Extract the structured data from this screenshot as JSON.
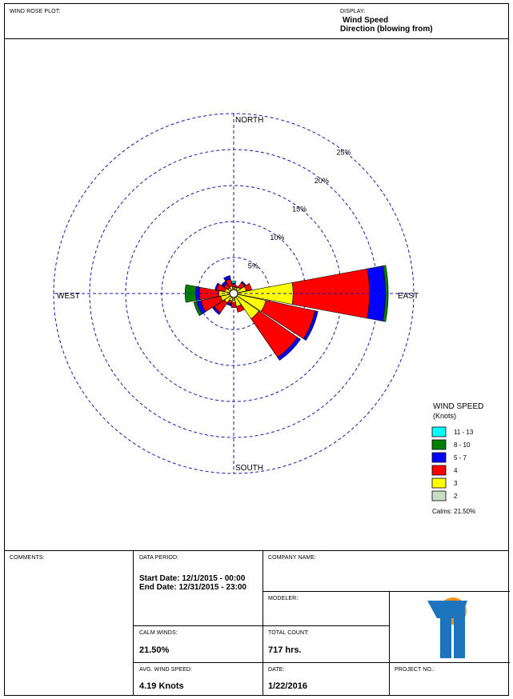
{
  "header": {
    "plot_label": "WIND ROSE PLOT:",
    "display_label": "DISPLAY:",
    "display_line1": "Wind Speed",
    "display_line2": "Direction (blowing from)"
  },
  "chart_data": {
    "type": "wind-rose",
    "directions": [
      "N",
      "NNE",
      "NE",
      "ENE",
      "E",
      "ESE",
      "SE",
      "SSE",
      "S",
      "SSW",
      "SW",
      "WSW",
      "W",
      "WNW",
      "NW",
      "NNW"
    ],
    "direction_labels": {
      "north": "NORTH",
      "east": "EAST",
      "south": "SOUTH",
      "west": "WEST"
    },
    "ring_labels": [
      "5%",
      "10%",
      "15%",
      "20%",
      "25%"
    ],
    "ring_values": [
      5,
      10,
      15,
      20,
      25
    ],
    "speed_bins": [
      "2",
      "3",
      "4",
      "5 - 7",
      "8 - 10",
      "11 - 13"
    ],
    "bin_colors": [
      "#c8dcc8",
      "#ffff00",
      "#ff0000",
      "#0000ff",
      "#008000",
      "#00ffff"
    ],
    "frequencies_percent": [
      [
        0.0,
        0.4,
        0.4,
        0.1,
        0.0,
        0.3
      ],
      [
        0.0,
        0.3,
        0.3,
        0.0,
        0.0,
        0.0
      ],
      [
        0.0,
        0.5,
        0.8,
        0.2,
        0.0,
        0.0
      ],
      [
        0.0,
        1.2,
        0.8,
        0.0,
        0.0,
        0.0
      ],
      [
        0.0,
        7.7,
        10.6,
        2.2,
        0.4,
        0.0
      ],
      [
        0.0,
        4.0,
        7.0,
        0.4,
        0.0,
        0.0
      ],
      [
        0.0,
        3.7,
        6.5,
        0.5,
        0.0,
        0.0
      ],
      [
        0.0,
        1.3,
        0.8,
        0.0,
        0.0,
        0.0
      ],
      [
        0.0,
        0.7,
        0.7,
        0.0,
        0.0,
        0.0
      ],
      [
        0.0,
        0.5,
        0.4,
        0.3,
        0.0,
        0.0
      ],
      [
        0.0,
        1.0,
        1.7,
        0.3,
        0.0,
        0.0
      ],
      [
        0.0,
        1.3,
        2.8,
        0.6,
        0.4,
        0.0
      ],
      [
        0.0,
        1.5,
        2.7,
        0.5,
        1.5,
        0.0
      ],
      [
        0.0,
        0.7,
        1.2,
        0.2,
        0.0,
        0.0
      ],
      [
        0.0,
        0.4,
        0.7,
        0.4,
        0.0,
        0.0
      ],
      [
        0.0,
        0.5,
        1.0,
        0.5,
        0.0,
        0.0
      ]
    ],
    "legend_title": "WIND SPEED",
    "legend_units": "(Knots)",
    "calms_text": "Calms: 21.50%"
  },
  "footer": {
    "comments_label": "COMMENTS:",
    "data_period_label": "DATA PERIOD:",
    "start_date": "Start Date: 12/1/2015 - 00:00",
    "end_date": "End Date: 12/31/2015 - 23:00",
    "company_label": "COMPANY NAME:",
    "modeler_label": "MODELER:",
    "calm_winds_label": "CALM WINDS:",
    "calm_winds_value": "21.50%",
    "total_count_label": "TOTAL COUNT:",
    "total_count_value": "717 hrs.",
    "avg_speed_label": "AVG. WIND SPEED:",
    "avg_speed_value": "4.19 Knots",
    "date_label": "DATE:",
    "date_value": "1/22/2016",
    "project_label": "PROJECT NO.:",
    "logo_colors": {
      "orange": "#f7941d",
      "blue": "#1c75bc"
    }
  }
}
